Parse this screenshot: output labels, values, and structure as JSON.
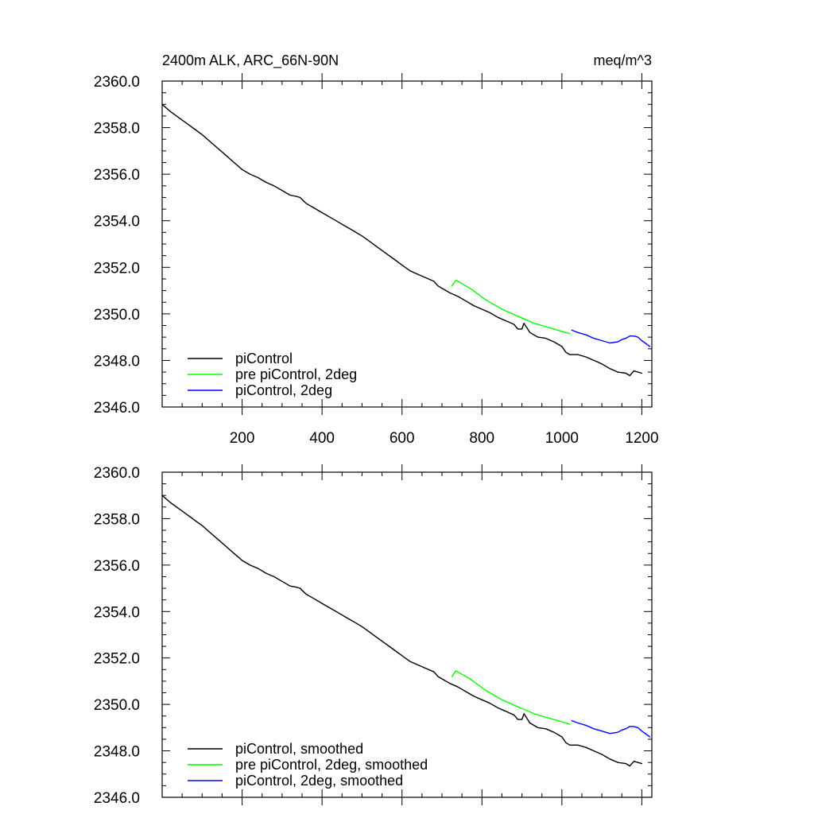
{
  "figure": {
    "title_left": "2400m ALK, ARC_66N-90N",
    "title_right": "meq/m^3"
  },
  "chart_data": [
    {
      "type": "line",
      "title": "2400m ALK, ARC_66N-90N",
      "units": "meq/m^3",
      "xlim": [
        0,
        1225
      ],
      "ylim": [
        2346.0,
        2360.0
      ],
      "xticks": [
        200,
        400,
        600,
        800,
        1000,
        1200
      ],
      "xtick_labels": [
        "200",
        "400",
        "600",
        "800",
        "1000",
        "1200"
      ],
      "yticks": [
        2346.0,
        2348.0,
        2350.0,
        2352.0,
        2354.0,
        2356.0,
        2358.0,
        2360.0
      ],
      "ytick_labels": [
        "2346.0",
        "2348.0",
        "2350.0",
        "2352.0",
        "2354.0",
        "2356.0",
        "2358.0",
        "2360.0"
      ],
      "grid": false,
      "legend_position": "bottom-left",
      "series": [
        {
          "name": "piControl",
          "color": "#000000",
          "x": [
            0,
            20,
            40,
            60,
            80,
            100,
            120,
            140,
            160,
            180,
            200,
            220,
            240,
            260,
            280,
            300,
            320,
            335,
            345,
            360,
            380,
            400,
            420,
            440,
            460,
            480,
            500,
            520,
            540,
            560,
            580,
            600,
            620,
            640,
            660,
            680,
            690,
            700,
            720,
            740,
            760,
            780,
            800,
            820,
            840,
            860,
            880,
            890,
            900,
            905,
            920,
            940,
            960,
            980,
            1000,
            1010,
            1020,
            1040,
            1060,
            1080,
            1100,
            1120,
            1140,
            1160,
            1170,
            1180,
            1200
          ],
          "y": [
            2359.0,
            2358.7,
            2358.45,
            2358.2,
            2357.95,
            2357.7,
            2357.4,
            2357.1,
            2356.8,
            2356.5,
            2356.2,
            2356.0,
            2355.85,
            2355.65,
            2355.5,
            2355.3,
            2355.1,
            2355.05,
            2355.0,
            2354.75,
            2354.55,
            2354.35,
            2354.15,
            2353.95,
            2353.75,
            2353.55,
            2353.35,
            2353.1,
            2352.85,
            2352.6,
            2352.35,
            2352.1,
            2351.85,
            2351.7,
            2351.55,
            2351.4,
            2351.2,
            2351.1,
            2350.9,
            2350.75,
            2350.55,
            2350.35,
            2350.2,
            2350.05,
            2349.85,
            2349.7,
            2349.55,
            2349.35,
            2349.35,
            2349.6,
            2349.2,
            2349.0,
            2348.95,
            2348.8,
            2348.6,
            2348.35,
            2348.25,
            2348.25,
            2348.15,
            2348.0,
            2347.85,
            2347.65,
            2347.5,
            2347.45,
            2347.35,
            2347.55,
            2347.45
          ]
        },
        {
          "name": "pre piControl, 2deg",
          "color": "#00ff00",
          "x": [
            725,
            735,
            750,
            770,
            790,
            810,
            830,
            850,
            870,
            890,
            910,
            930,
            950,
            970,
            990,
            1010,
            1020
          ],
          "y": [
            2351.2,
            2351.45,
            2351.3,
            2351.1,
            2350.85,
            2350.6,
            2350.4,
            2350.2,
            2350.05,
            2349.9,
            2349.75,
            2349.6,
            2349.5,
            2349.4,
            2349.3,
            2349.2,
            2349.15
          ]
        },
        {
          "name": "piControl, 2deg",
          "color": "#0000ff",
          "x": [
            1025,
            1040,
            1060,
            1080,
            1100,
            1110,
            1120,
            1140,
            1150,
            1160,
            1170,
            1180,
            1190,
            1200,
            1220
          ],
          "y": [
            2349.3,
            2349.2,
            2349.1,
            2348.95,
            2348.85,
            2348.8,
            2348.75,
            2348.8,
            2348.9,
            2348.95,
            2349.05,
            2349.05,
            2349.0,
            2348.85,
            2348.6
          ]
        }
      ]
    },
    {
      "type": "line",
      "xlim": [
        0,
        1225
      ],
      "ylim": [
        2346.0,
        2360.0
      ],
      "xticks": [
        200,
        400,
        600,
        800,
        1000,
        1200
      ],
      "yticks": [
        2346.0,
        2348.0,
        2350.0,
        2352.0,
        2354.0,
        2356.0,
        2358.0,
        2360.0
      ],
      "ytick_labels": [
        "2346.0",
        "2348.0",
        "2350.0",
        "2352.0",
        "2354.0",
        "2356.0",
        "2358.0",
        "2360.0"
      ],
      "grid": false,
      "legend_position": "bottom-left",
      "series": [
        {
          "name": "piControl, smoothed",
          "color": "#000000",
          "x": [
            0,
            20,
            40,
            60,
            80,
            100,
            120,
            140,
            160,
            180,
            200,
            220,
            240,
            260,
            280,
            300,
            320,
            335,
            345,
            360,
            380,
            400,
            420,
            440,
            460,
            480,
            500,
            520,
            540,
            560,
            580,
            600,
            620,
            640,
            660,
            680,
            690,
            700,
            720,
            740,
            760,
            780,
            800,
            820,
            840,
            860,
            880,
            890,
            900,
            905,
            920,
            940,
            960,
            980,
            1000,
            1010,
            1020,
            1040,
            1060,
            1080,
            1100,
            1120,
            1140,
            1160,
            1170,
            1180,
            1200
          ],
          "y": [
            2359.0,
            2358.7,
            2358.45,
            2358.2,
            2357.95,
            2357.7,
            2357.4,
            2357.1,
            2356.8,
            2356.5,
            2356.2,
            2356.0,
            2355.85,
            2355.65,
            2355.5,
            2355.3,
            2355.1,
            2355.05,
            2355.0,
            2354.75,
            2354.55,
            2354.35,
            2354.15,
            2353.95,
            2353.75,
            2353.55,
            2353.35,
            2353.1,
            2352.85,
            2352.6,
            2352.35,
            2352.1,
            2351.85,
            2351.7,
            2351.55,
            2351.4,
            2351.2,
            2351.1,
            2350.9,
            2350.75,
            2350.55,
            2350.35,
            2350.2,
            2350.05,
            2349.85,
            2349.7,
            2349.55,
            2349.35,
            2349.35,
            2349.6,
            2349.2,
            2349.0,
            2348.95,
            2348.8,
            2348.6,
            2348.35,
            2348.25,
            2348.25,
            2348.15,
            2348.0,
            2347.85,
            2347.65,
            2347.5,
            2347.45,
            2347.35,
            2347.55,
            2347.45
          ]
        },
        {
          "name": "pre piControl, 2deg, smoothed",
          "color": "#00ff00",
          "x": [
            725,
            735,
            750,
            770,
            790,
            810,
            830,
            850,
            870,
            890,
            910,
            930,
            950,
            970,
            990,
            1010,
            1020
          ],
          "y": [
            2351.2,
            2351.45,
            2351.3,
            2351.1,
            2350.85,
            2350.6,
            2350.4,
            2350.2,
            2350.05,
            2349.9,
            2349.75,
            2349.6,
            2349.5,
            2349.4,
            2349.3,
            2349.2,
            2349.15
          ]
        },
        {
          "name": "piControl, 2deg, smoothed",
          "color": "#0000ff",
          "x": [
            1025,
            1040,
            1060,
            1080,
            1100,
            1110,
            1120,
            1140,
            1150,
            1160,
            1170,
            1180,
            1190,
            1200,
            1220
          ],
          "y": [
            2349.3,
            2349.2,
            2349.1,
            2348.95,
            2348.85,
            2348.8,
            2348.75,
            2348.8,
            2348.9,
            2348.95,
            2349.05,
            2349.05,
            2349.0,
            2348.85,
            2348.6
          ]
        }
      ]
    }
  ]
}
